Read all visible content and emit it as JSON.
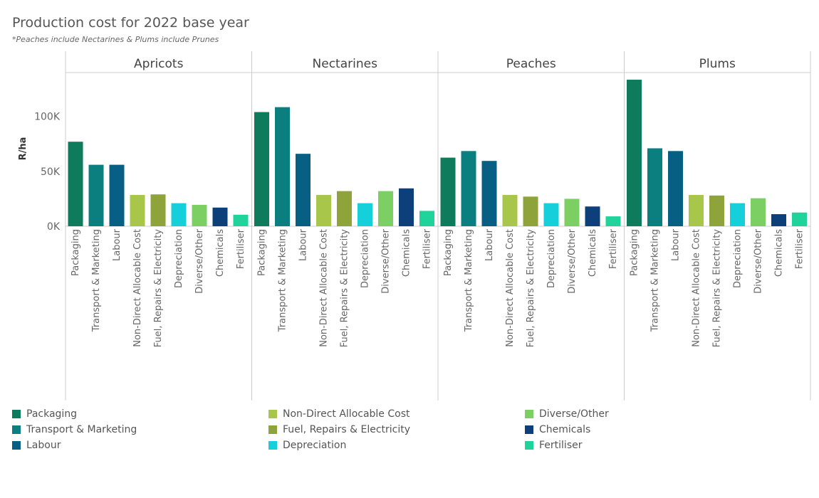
{
  "title": "Production cost for 2022 base year",
  "subtitle": "*Peaches include Nectarines & Plums include Prunes",
  "chart_data": {
    "type": "bar",
    "ylabel": "R/ha",
    "ylim": [
      0,
      140000
    ],
    "yticks": [
      0,
      50000,
      100000
    ],
    "ytick_labels": [
      "0K",
      "50K",
      "100K"
    ],
    "categories": [
      "Packaging",
      "Transport & Marketing",
      "Labour",
      "Non-Direct Allocable Cost",
      "Fuel, Repairs & Electricity",
      "Depreciation",
      "Diverse/Other",
      "Chemicals",
      "Fertiliser"
    ],
    "colors": [
      "#0e7c5c",
      "#0b7f80",
      "#075f84",
      "#a8c64a",
      "#8ea33a",
      "#15d0da",
      "#7ccf63",
      "#0d3f7a",
      "#1fd39b"
    ],
    "panels": [
      {
        "name": "Apricots",
        "values": [
          77000,
          56000,
          56000,
          28500,
          29000,
          21000,
          19500,
          17000,
          10500
        ]
      },
      {
        "name": "Nectarines",
        "values": [
          104000,
          108500,
          66000,
          28500,
          32000,
          21000,
          32000,
          34500,
          14000
        ]
      },
      {
        "name": "Peaches",
        "values": [
          62500,
          68500,
          59500,
          28500,
          27000,
          21000,
          25000,
          18000,
          9000
        ]
      },
      {
        "name": "Plums",
        "values": [
          133500,
          71000,
          68500,
          28500,
          28000,
          21000,
          25500,
          11000,
          12500
        ]
      }
    ]
  }
}
